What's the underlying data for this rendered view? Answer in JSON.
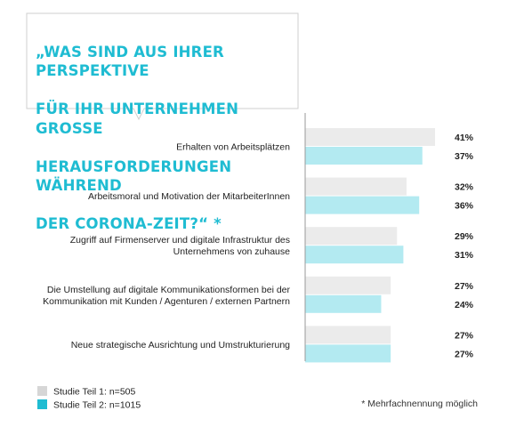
{
  "chart_data": {
    "type": "bar",
    "orientation": "horizontal",
    "title": "„WAS SIND AUS IHRER PERSPEKTIVE FÜR IHR UNTERNEHMEN GROSSE HERAUSFORDERUNGEN WÄHREND DER CORONA-ZEIT?“ *",
    "title_lines": [
      "„WAS SIND AUS IHRER PERSPEKTIVE",
      "FÜR IHR UNTERNEHMEN GROSSE",
      "HERAUSFORDERUNGEN WÄHREND",
      "DER CORONA-ZEIT?“ *"
    ],
    "categories": [
      [
        "Erhalten von Arbeitsplätzen"
      ],
      [
        "Arbeitsmoral und Motivation der MitarbeiterInnen"
      ],
      [
        "Zugriff auf Firmenserver und digitale Infrastruktur des",
        "Unternehmens von zuhause"
      ],
      [
        "Die Umstellung auf digitale Kommunikationsformen bei der",
        "Kommunikation mit Kunden / Agenturen / externen Partnern"
      ],
      [
        "Neue strategische Ausrichtung und Umstrukturierung"
      ]
    ],
    "series": [
      {
        "name": "Studie Teil 1: n=505",
        "color": "#ebebeb",
        "legend_color": "#d6d6d6",
        "values": [
          41,
          32,
          29,
          27,
          27
        ],
        "labels": [
          "41%",
          "32%",
          "29%",
          "27%",
          "27%"
        ]
      },
      {
        "name": "Studie Teil 2: n=1015",
        "color": "#b3eaf1",
        "legend_color": "#1fbcd2",
        "values": [
          37,
          36,
          31,
          24,
          27
        ],
        "labels": [
          "37%",
          "36%",
          "31%",
          "24%",
          "27%"
        ]
      }
    ],
    "footnote": "* Mehrfachnennung möglich",
    "accent_color": "#1fbcd2"
  }
}
